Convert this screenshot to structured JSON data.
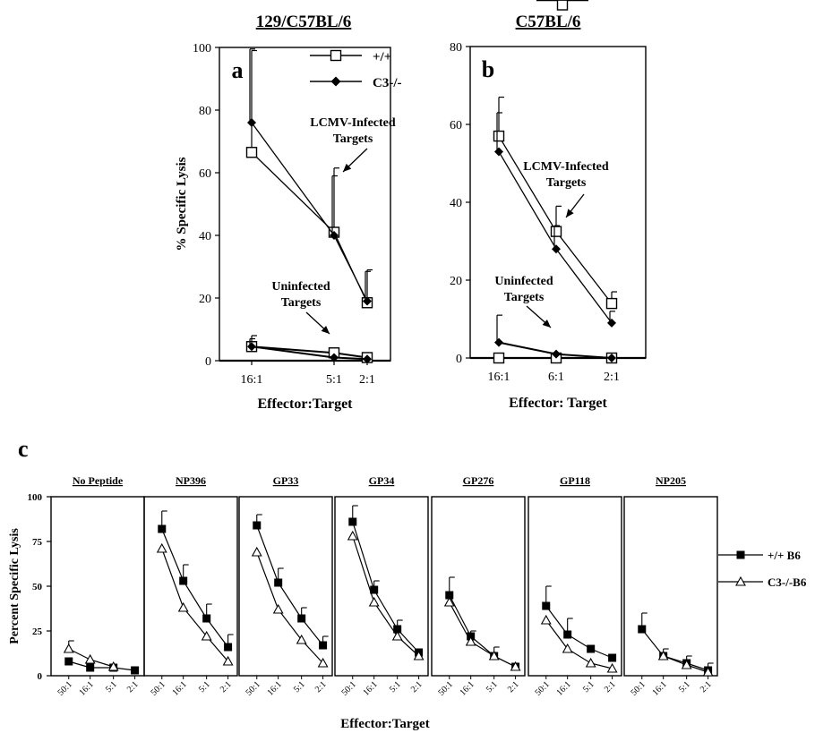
{
  "chart_data": [
    {
      "type": "line",
      "panel_letter": "a",
      "title": "129/C57BL/6",
      "xlabel": "Effector:Target",
      "ylabel": "% Specific Lysis",
      "categories": [
        "16:1",
        "5:1",
        "2:1"
      ],
      "ylim": [
        0,
        100
      ],
      "yticks": [
        "0",
        "20",
        "40",
        "60",
        "80",
        "100"
      ],
      "legend": [
        {
          "label": "+/+",
          "marker": "open-square"
        },
        {
          "label": "C3-/-",
          "marker": "filled-diamond"
        }
      ],
      "series": [
        {
          "name": "+/+",
          "group": "LCMV-Infected Targets",
          "marker": "open-square",
          "values": [
            66.5,
            41,
            18.5
          ],
          "error_up": [
            32.5,
            20.5,
            10.5
          ]
        },
        {
          "name": "C3-/-",
          "group": "LCMV-Infected Targets",
          "marker": "filled-diamond",
          "values": [
            76,
            40,
            19
          ],
          "error_up": [
            23.5,
            19,
            9.5
          ]
        },
        {
          "name": "+/+",
          "group": "Uninfected Targets",
          "marker": "open-square",
          "values": [
            4.5,
            2.5,
            1
          ],
          "error_up": [
            3.5,
            0,
            0
          ]
        },
        {
          "name": "C3-/-",
          "group": "Uninfected Targets",
          "marker": "filled-diamond",
          "values": [
            4.5,
            1,
            0.5
          ],
          "error_up": [
            2.5,
            0,
            0
          ]
        }
      ],
      "annotations": [
        {
          "lines": [
            "LCMV-Infected",
            "Targets"
          ]
        },
        {
          "lines": [
            "Uninfected",
            "Targets"
          ]
        }
      ]
    },
    {
      "type": "line",
      "panel_letter": "b",
      "title": "C57BL/6",
      "xlabel": "Effector: Target",
      "ylabel": "",
      "categories": [
        "16:1",
        "6:1",
        "2:1"
      ],
      "ylim": [
        0,
        80
      ],
      "yticks": [
        "0",
        "20",
        "40",
        "60",
        "80"
      ],
      "legend": [
        {
          "label": "+/+",
          "marker": "open-square"
        },
        {
          "label": "C3-/-",
          "marker": "filled-diamond"
        }
      ],
      "series": [
        {
          "name": "+/+",
          "group": "LCMV-Infected Targets",
          "marker": "open-square",
          "values": [
            57,
            32.5,
            14
          ],
          "error_up": [
            10,
            6.5,
            3
          ]
        },
        {
          "name": "C3-/-",
          "group": "LCMV-Infected Targets",
          "marker": "filled-diamond",
          "values": [
            53,
            28,
            9
          ],
          "error_up": [
            10,
            6,
            3
          ]
        },
        {
          "name": "+/+",
          "group": "Uninfected Targets",
          "marker": "open-square",
          "values": [
            0,
            0,
            0
          ],
          "error_up": [
            0,
            0,
            0
          ]
        },
        {
          "name": "C3-/-",
          "group": "Uninfected Targets",
          "marker": "filled-diamond",
          "values": [
            4,
            1,
            0
          ],
          "error_up": [
            7,
            0,
            0
          ]
        }
      ],
      "annotations": [
        {
          "lines": [
            "LCMV-Infected",
            "Targets"
          ]
        },
        {
          "lines": [
            "Uninfected",
            "Targets"
          ]
        }
      ]
    },
    {
      "type": "line",
      "panel_letter": "c",
      "xlabel": "Effector:Target",
      "ylabel": "Percent Specific Lysis",
      "ylim": [
        0,
        100
      ],
      "yticks": [
        "0",
        "25",
        "50",
        "75",
        "100"
      ],
      "legend": [
        {
          "label": "+/+ B6",
          "marker": "filled-square"
        },
        {
          "label": "C3-/-B6",
          "marker": "open-triangle"
        }
      ],
      "panels": [
        {
          "title": "No Peptide",
          "categories": [
            "50:1",
            "16:1",
            "5:1",
            "2:1"
          ],
          "series": [
            {
              "name": "+/+ B6",
              "values": [
                8,
                4.5,
                4.5,
                3
              ],
              "error_up": [
                0,
                0,
                0,
                0
              ]
            },
            {
              "name": "C3-/-B6",
              "values": [
                15,
                9,
                5,
                null
              ],
              "error_up": [
                4.5,
                0,
                0,
                0
              ]
            }
          ]
        },
        {
          "title": "NP396",
          "categories": [
            "50:1",
            "16:1",
            "5:1",
            "2:1"
          ],
          "series": [
            {
              "name": "+/+ B6",
              "values": [
                82,
                53,
                32,
                16
              ],
              "error_up": [
                10,
                9,
                8,
                7
              ]
            },
            {
              "name": "C3-/-B6",
              "values": [
                71,
                38,
                22,
                8
              ],
              "error_up": [
                0,
                0,
                0,
                0
              ]
            }
          ]
        },
        {
          "title": "GP33",
          "categories": [
            "50:1",
            "16:1",
            "5:1",
            "2:1"
          ],
          "series": [
            {
              "name": "+/+ B6",
              "values": [
                84,
                52,
                32,
                17
              ],
              "error_up": [
                6,
                8,
                6,
                5
              ]
            },
            {
              "name": "C3-/-B6",
              "values": [
                69,
                37,
                20,
                7
              ],
              "error_up": [
                0,
                0,
                0,
                0
              ]
            }
          ]
        },
        {
          "title": "GP34",
          "categories": [
            "50:1",
            "16:1",
            "5:1",
            "2:1"
          ],
          "series": [
            {
              "name": "+/+ B6",
              "values": [
                86,
                48,
                26,
                13
              ],
              "error_up": [
                9,
                5,
                5,
                0
              ]
            },
            {
              "name": "C3-/-B6",
              "values": [
                78,
                41,
                22,
                11
              ],
              "error_up": [
                0,
                0,
                0,
                0
              ]
            }
          ]
        },
        {
          "title": "GP276",
          "categories": [
            "50:1",
            "16:1",
            "5:1",
            "2:1"
          ],
          "series": [
            {
              "name": "+/+ B6",
              "values": [
                45,
                22,
                11,
                5
              ],
              "error_up": [
                10,
                3,
                5,
                0
              ]
            },
            {
              "name": "C3-/-B6",
              "values": [
                41,
                19,
                11,
                5
              ],
              "error_up": [
                0,
                0,
                0,
                0
              ]
            }
          ]
        },
        {
          "title": "GP118",
          "categories": [
            "50:1",
            "16:1",
            "5:1",
            "2:1"
          ],
          "series": [
            {
              "name": "+/+ B6",
              "values": [
                39,
                23,
                15,
                10
              ],
              "error_up": [
                11,
                9,
                0,
                0
              ]
            },
            {
              "name": "C3-/-B6",
              "values": [
                31,
                15,
                7,
                4
              ],
              "error_up": [
                0,
                0,
                0,
                0
              ]
            }
          ]
        },
        {
          "title": "NP205",
          "categories": [
            "50:1",
            "16:1",
            "5:1",
            "2:1"
          ],
          "series": [
            {
              "name": "+/+ B6",
              "values": [
                26,
                11,
                7,
                3
              ],
              "error_up": [
                9,
                4,
                4,
                4
              ]
            },
            {
              "name": "C3-/-B6",
              "values": [
                null,
                11,
                6,
                2
              ],
              "error_up": [
                0,
                0,
                0,
                0
              ]
            }
          ]
        }
      ]
    }
  ]
}
